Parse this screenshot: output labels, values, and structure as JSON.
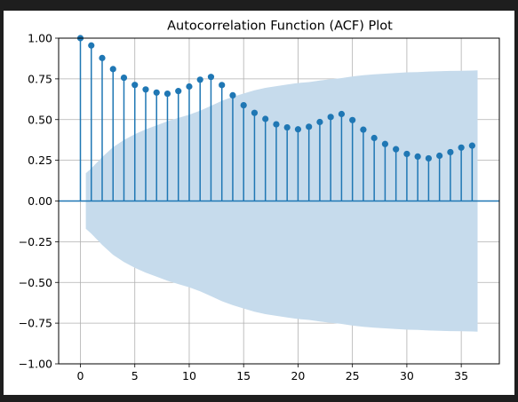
{
  "chart_data": {
    "type": "stem",
    "title": "Autocorrelation Function (ACF) Plot",
    "xlabel": "",
    "ylabel": "",
    "xlim": [
      -2,
      38.5
    ],
    "ylim": [
      -1.0,
      1.0
    ],
    "x_ticks": [
      0,
      5,
      10,
      15,
      20,
      25,
      30,
      35
    ],
    "x_tick_labels": [
      "0",
      "5",
      "10",
      "15",
      "20",
      "25",
      "30",
      "35"
    ],
    "y_ticks": [
      -1.0,
      -0.75,
      -0.5,
      -0.25,
      0.0,
      0.25,
      0.5,
      0.75,
      1.0
    ],
    "y_tick_labels": [
      "−1.00",
      "−0.75",
      "−0.50",
      "−0.25",
      "0.00",
      "0.25",
      "0.50",
      "0.75",
      "1.00"
    ],
    "grid": true,
    "lags": [
      0,
      1,
      2,
      3,
      4,
      5,
      6,
      7,
      8,
      9,
      10,
      11,
      12,
      13,
      14,
      15,
      16,
      17,
      18,
      19,
      20,
      21,
      22,
      23,
      24,
      25,
      26,
      27,
      28,
      29,
      30,
      31,
      32,
      33,
      34,
      35,
      36
    ],
    "acf": [
      1.0,
      0.955,
      0.878,
      0.81,
      0.757,
      0.713,
      0.685,
      0.666,
      0.659,
      0.675,
      0.703,
      0.745,
      0.762,
      0.712,
      0.649,
      0.588,
      0.541,
      0.504,
      0.471,
      0.452,
      0.44,
      0.456,
      0.485,
      0.516,
      0.534,
      0.497,
      0.438,
      0.387,
      0.35,
      0.318,
      0.289,
      0.273,
      0.262,
      0.278,
      0.3,
      0.328,
      0.34
    ],
    "confidence_band": {
      "lags": [
        0.5,
        1,
        2,
        3,
        4,
        5,
        6,
        7,
        8,
        9,
        10,
        11,
        12,
        13,
        14,
        15,
        16,
        17,
        18,
        19,
        20,
        21,
        22,
        23,
        24,
        25,
        26,
        27,
        28,
        29,
        30,
        31,
        32,
        33,
        34,
        35,
        36,
        36.5
      ],
      "upper": [
        0.17,
        0.2,
        0.27,
        0.33,
        0.375,
        0.41,
        0.44,
        0.465,
        0.49,
        0.51,
        0.53,
        0.555,
        0.585,
        0.615,
        0.64,
        0.66,
        0.68,
        0.695,
        0.705,
        0.715,
        0.725,
        0.73,
        0.74,
        0.748,
        0.755,
        0.765,
        0.772,
        0.778,
        0.782,
        0.786,
        0.79,
        0.792,
        0.795,
        0.797,
        0.799,
        0.8,
        0.801,
        0.802
      ],
      "color": "#c6dbec"
    },
    "series_color": "#1f77b4",
    "zero_line_color": "#1f77b4"
  }
}
